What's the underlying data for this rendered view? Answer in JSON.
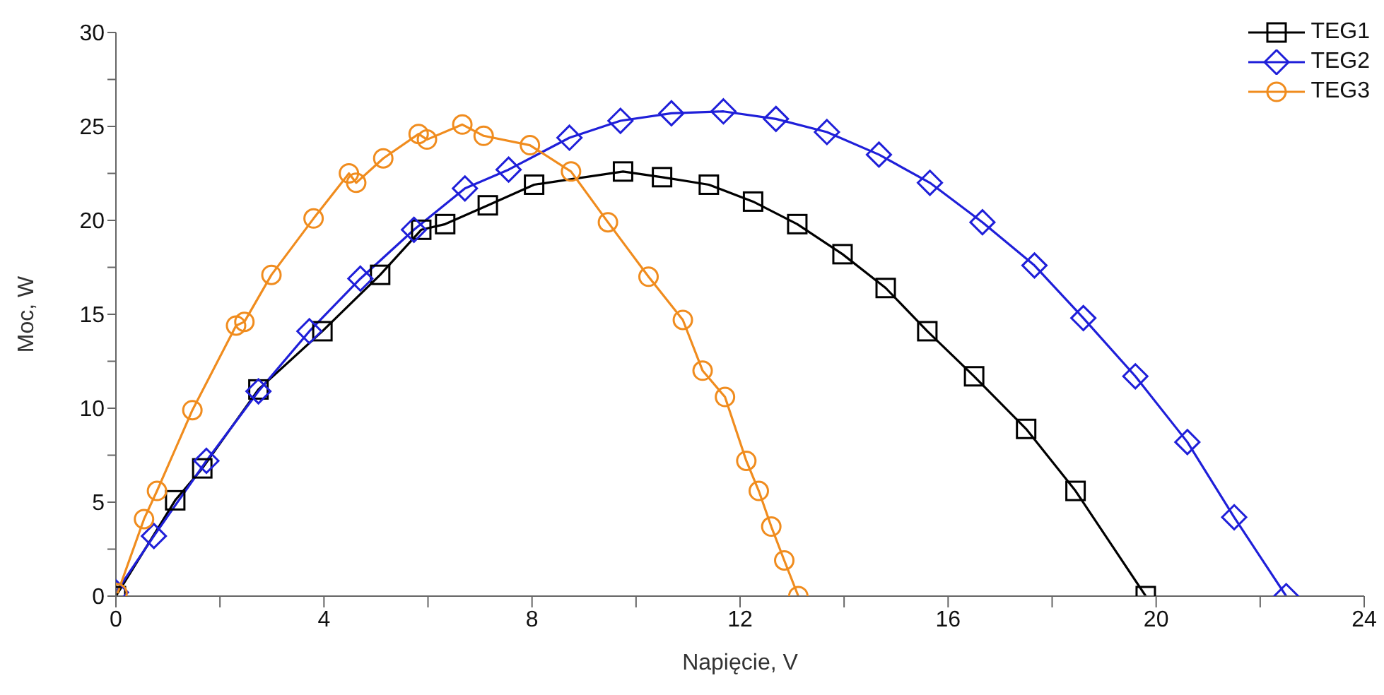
{
  "chart_data": {
    "type": "line",
    "xlabel": "Napięcie, V",
    "ylabel": "Moc, W",
    "xlim": [
      0,
      24
    ],
    "ylim": [
      0,
      30
    ],
    "xticks": [
      0,
      {
        "value": 2,
        "label": null
      },
      4,
      {
        "value": 6,
        "label": null
      },
      8,
      {
        "value": 10,
        "label": null
      },
      12,
      {
        "value": 14,
        "label": null
      },
      16,
      {
        "value": 18,
        "label": null
      },
      20,
      {
        "value": 22,
        "label": null
      },
      24
    ],
    "yticks": [
      0,
      {
        "value": 2.5,
        "label": null
      },
      5,
      {
        "value": 7.5,
        "label": null
      },
      10,
      {
        "value": 12.5,
        "label": null
      },
      15,
      {
        "value": 17.5,
        "label": null
      },
      20,
      {
        "value": 22.5,
        "label": null
      },
      25,
      {
        "value": 27.5,
        "label": null
      },
      30
    ],
    "grid": false,
    "legend": "top right",
    "line_style": "solid",
    "series": [
      {
        "name": "TEG1",
        "color": "#000000",
        "marker": "square",
        "x": [
          0,
          1.14,
          1.66,
          2.74,
          3.97,
          5.08,
          5.87,
          6.33,
          7.15,
          8.04,
          9.75,
          10.5,
          11.4,
          12.25,
          13.1,
          13.97,
          14.8,
          15.6,
          16.5,
          17.5,
          18.45,
          19.8
        ],
        "values": [
          0,
          5.1,
          6.8,
          11.0,
          14.1,
          17.1,
          19.5,
          19.8,
          20.8,
          21.9,
          22.6,
          22.3,
          21.9,
          21.0,
          19.8,
          18.2,
          16.4,
          14.1,
          11.7,
          8.9,
          5.6,
          0
        ]
      },
      {
        "name": "TEG2",
        "color": "#1f1fd9",
        "marker": "diamond",
        "x": [
          0,
          0.73,
          1.74,
          2.74,
          3.72,
          4.7,
          5.73,
          6.71,
          7.55,
          8.72,
          9.7,
          10.68,
          11.68,
          12.69,
          13.67,
          14.67,
          15.65,
          16.66,
          17.66,
          18.6,
          19.6,
          20.6,
          21.5,
          22.5
        ],
        "values": [
          0.2,
          3.2,
          7.2,
          10.9,
          14.1,
          16.9,
          19.5,
          21.7,
          22.7,
          24.4,
          25.3,
          25.7,
          25.8,
          25.4,
          24.7,
          23.5,
          22.0,
          19.9,
          17.6,
          14.8,
          11.7,
          8.2,
          4.2,
          0
        ]
      },
      {
        "name": "TEG3",
        "color": "#f08c1e",
        "marker": "circle",
        "x": [
          0.03,
          0.54,
          0.79,
          1.47,
          2.31,
          2.47,
          2.99,
          3.8,
          4.48,
          4.62,
          5.14,
          5.82,
          5.98,
          6.66,
          7.07,
          7.96,
          8.75,
          9.46,
          10.24,
          10.9,
          11.28,
          11.71,
          12.12,
          12.36,
          12.6,
          12.85,
          13.12
        ],
        "values": [
          0.15,
          4.1,
          5.6,
          9.9,
          14.4,
          14.6,
          17.1,
          20.1,
          22.5,
          22.0,
          23.3,
          24.6,
          24.3,
          25.1,
          24.5,
          24.0,
          22.6,
          19.9,
          17.0,
          14.7,
          12.0,
          10.6,
          7.2,
          5.6,
          3.7,
          1.9,
          0
        ]
      }
    ]
  }
}
